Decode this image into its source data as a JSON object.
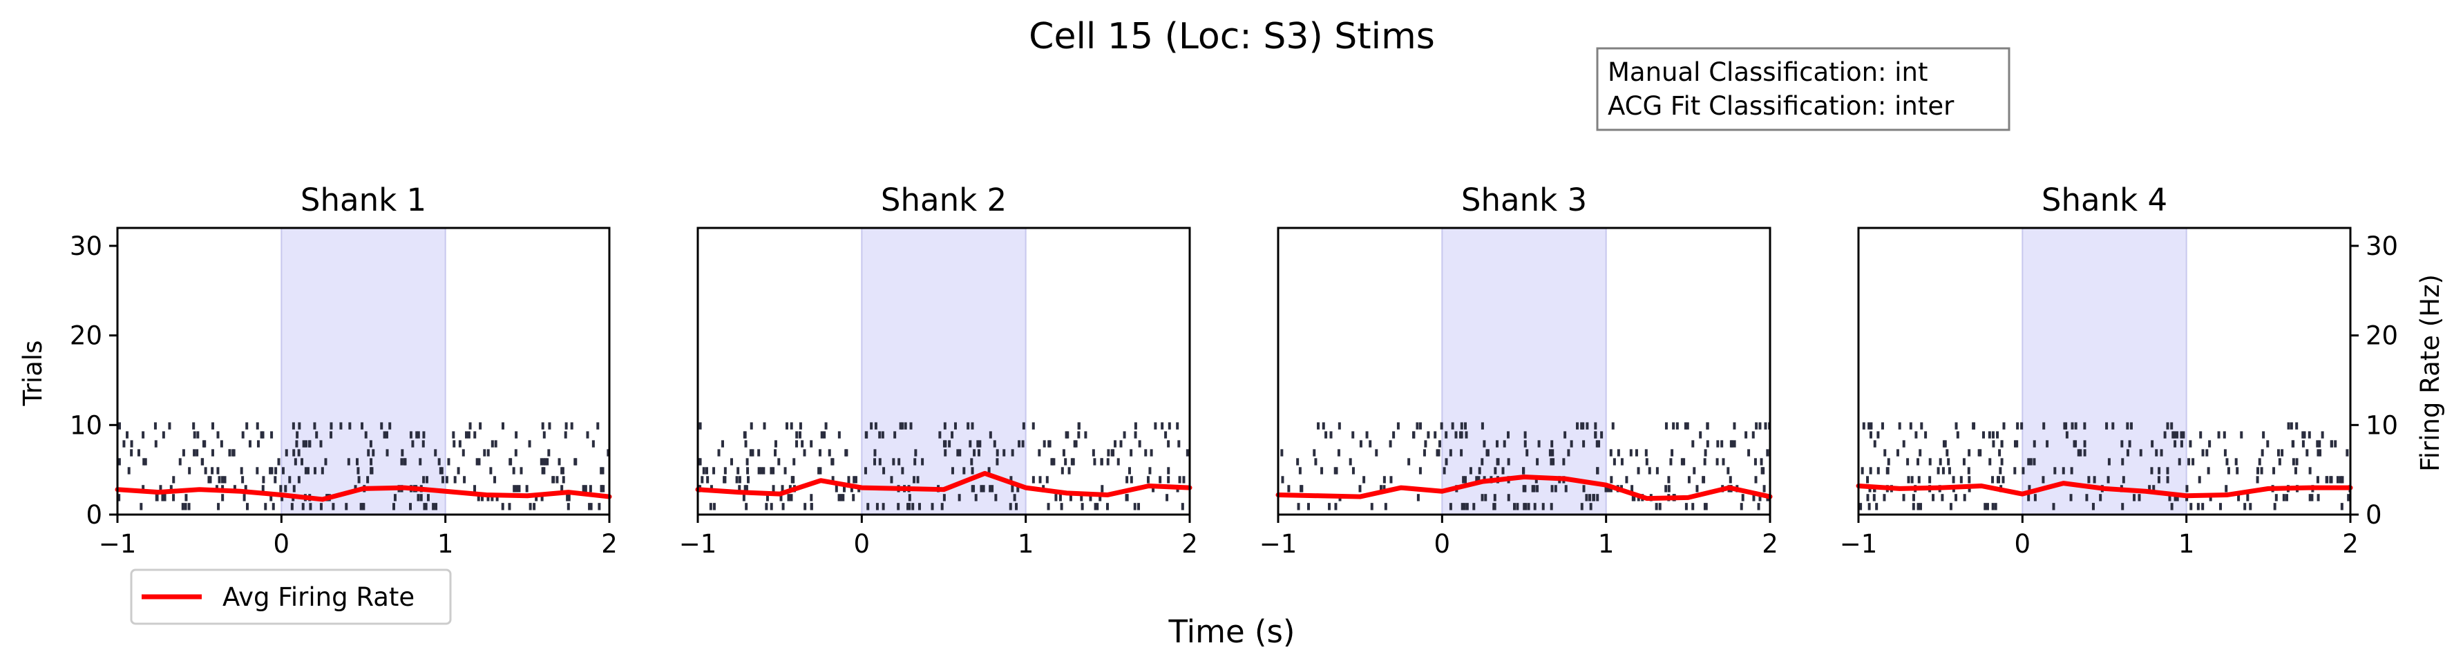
{
  "figure": {
    "title": "Cell 15 (Loc: S3) Stims",
    "xlabel": "Time (s)",
    "ylabel_left": "Trials",
    "ylabel_right": "Firing Rate (Hz)",
    "info_box": [
      "Manual Classification: int",
      "ACG Fit Classification: inter"
    ],
    "legend": {
      "label": "Avg Firing Rate",
      "color": "#ff0000",
      "placement": "lower-left, below first panel"
    }
  },
  "chart_data": [
    {
      "type": "raster+line",
      "title": "Shank 1",
      "xlim": [
        -1,
        2
      ],
      "ylim": [
        0,
        32
      ],
      "xticks": [
        "−1",
        "0",
        "1",
        "2"
      ],
      "yticks": [
        "0",
        "10",
        "20",
        "30"
      ],
      "stim_window": [
        0,
        1
      ],
      "firing_rate": {
        "x": [
          -1,
          -0.75,
          -0.5,
          -0.25,
          0,
          0.25,
          0.5,
          0.75,
          1,
          1.25,
          1.5,
          1.75,
          2
        ],
        "y": [
          2.8,
          2.5,
          2.8,
          2.6,
          2.2,
          1.7,
          2.9,
          3.0,
          2.6,
          2.2,
          2.1,
          2.5,
          2.0
        ]
      }
    },
    {
      "type": "raster+line",
      "title": "Shank 2",
      "xlim": [
        -1,
        2
      ],
      "ylim": [
        0,
        32
      ],
      "xticks": [
        "−1",
        "0",
        "1",
        "2"
      ],
      "yticks": [],
      "stim_window": [
        0,
        1
      ],
      "firing_rate": {
        "x": [
          -1,
          -0.75,
          -0.5,
          -0.25,
          0,
          0.25,
          0.5,
          0.75,
          1,
          1.25,
          1.5,
          1.75,
          2
        ],
        "y": [
          2.8,
          2.5,
          2.3,
          3.8,
          3.0,
          2.9,
          2.8,
          4.6,
          3.0,
          2.4,
          2.2,
          3.2,
          3.0
        ]
      }
    },
    {
      "type": "raster+line",
      "title": "Shank 3",
      "xlim": [
        -1,
        2
      ],
      "ylim": [
        0,
        32
      ],
      "xticks": [
        "−1",
        "0",
        "1",
        "2"
      ],
      "yticks": [],
      "stim_window": [
        0,
        1
      ],
      "firing_rate": {
        "x": [
          -1,
          -0.75,
          -0.5,
          -0.25,
          0,
          0.25,
          0.5,
          0.75,
          1,
          1.25,
          1.5,
          1.75,
          2
        ],
        "y": [
          2.2,
          2.1,
          2.0,
          3.0,
          2.6,
          3.7,
          4.2,
          4.0,
          3.3,
          1.8,
          1.9,
          3.0,
          2.0
        ]
      }
    },
    {
      "type": "raster+line",
      "title": "Shank 4",
      "xlim": [
        -1,
        2
      ],
      "ylim": [
        0,
        32
      ],
      "xticks": [
        "−1",
        "0",
        "1",
        "2"
      ],
      "yticks": [
        "0",
        "10",
        "20",
        "30"
      ],
      "stim_window": [
        0,
        1
      ],
      "firing_rate": {
        "x": [
          -1,
          -0.75,
          -0.5,
          -0.25,
          0,
          0.25,
          0.5,
          0.75,
          1,
          1.25,
          1.5,
          1.75,
          2
        ],
        "y": [
          3.2,
          2.9,
          3.0,
          3.2,
          2.3,
          3.5,
          2.9,
          2.6,
          2.1,
          2.2,
          2.9,
          3.0,
          3.0
        ]
      }
    }
  ],
  "raster": {
    "trials": 10,
    "tick_color": "#2a2d3e",
    "stim_color": "#e4e4fb"
  }
}
